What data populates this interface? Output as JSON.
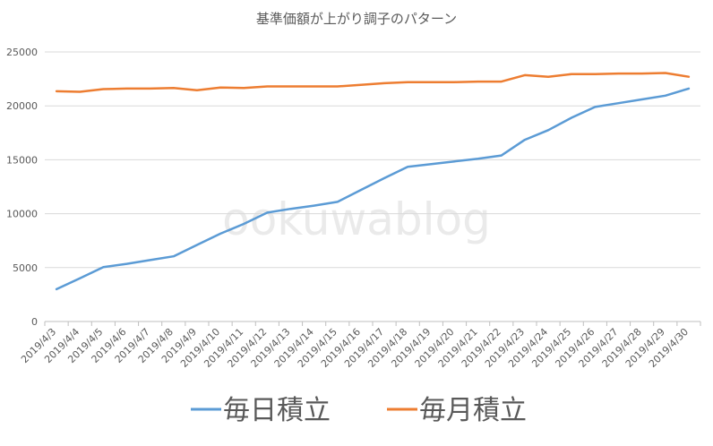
{
  "chart_data": {
    "type": "line",
    "title": "基準価額が上がり調子のパターン",
    "watermark": "ookuwablog",
    "xlabel": "",
    "ylabel": "",
    "ylim": [
      0,
      25000
    ],
    "yticks": [
      0,
      5000,
      10000,
      15000,
      20000,
      25000
    ],
    "grid": true,
    "legend_position": "bottom",
    "categories": [
      "2019/4/3",
      "2019/4/4",
      "2019/4/5",
      "2019/4/6",
      "2019/4/7",
      "2019/4/8",
      "2019/4/9",
      "2019/4/10",
      "2019/4/11",
      "2019/4/12",
      "2019/4/13",
      "2019/4/14",
      "2019/4/15",
      "2019/4/16",
      "2019/4/17",
      "2019/4/18",
      "2019/4/19",
      "2019/4/20",
      "2019/4/21",
      "2019/4/22",
      "2019/4/23",
      "2019/4/24",
      "2019/4/25",
      "2019/4/26",
      "2019/4/27",
      "2019/4/28",
      "2019/4/29",
      "2019/4/30"
    ],
    "series": [
      {
        "name": "毎日積立",
        "color": "#5b9bd5",
        "values": [
          3000,
          4000,
          5050,
          5350,
          5700,
          6050,
          7100,
          8150,
          9050,
          10100,
          10450,
          10750,
          11100,
          12200,
          13300,
          14350,
          14600,
          14850,
          15100,
          15400,
          16850,
          17750,
          18900,
          19900,
          20250,
          20600,
          20950,
          21600
        ]
      },
      {
        "name": "毎月積立",
        "color": "#ed7d31",
        "values": [
          21350,
          21300,
          21550,
          21600,
          21600,
          21650,
          21450,
          21700,
          21650,
          21800,
          21800,
          21800,
          21800,
          21950,
          22100,
          22200,
          22200,
          22200,
          22250,
          22250,
          22850,
          22700,
          22950,
          22950,
          23000,
          23000,
          23050,
          22700
        ]
      }
    ]
  }
}
